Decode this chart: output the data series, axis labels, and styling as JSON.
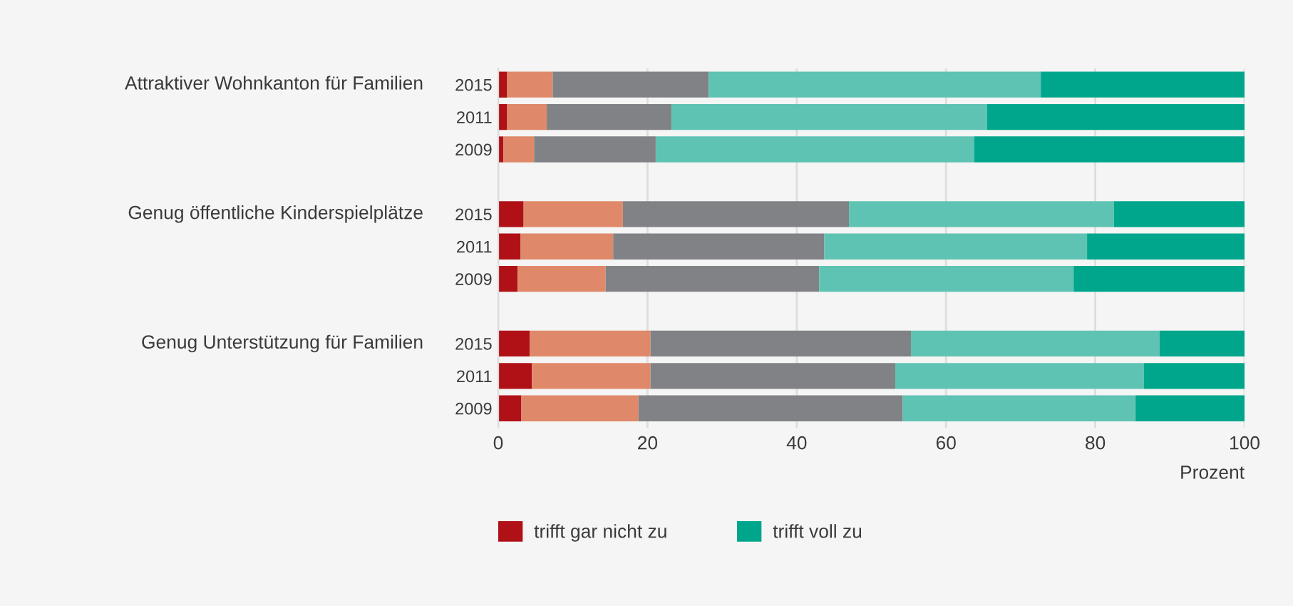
{
  "chart_data": {
    "type": "bar",
    "orientation": "horizontal",
    "stacked": true,
    "categories": [
      "2015",
      "2011",
      "2009",
      null,
      "2015",
      "2011",
      "2009",
      null,
      "2015",
      "2011",
      "2009"
    ],
    "series": [
      {
        "name": "trifft gar nicht zu",
        "color": "#b01117",
        "values": [
          1.2,
          1.2,
          0.7,
          null,
          3.4,
          3.0,
          2.6,
          null,
          4.2,
          4.5,
          3.1
        ]
      },
      {
        "color": "#e0896a",
        "values": [
          6.1,
          5.3,
          4.1,
          null,
          13.3,
          12.4,
          11.8,
          null,
          16.2,
          15.9,
          15.7
        ]
      },
      {
        "color": "#818285",
        "values": [
          20.9,
          16.7,
          16.3,
          null,
          30.3,
          28.3,
          28.6,
          null,
          34.9,
          32.8,
          35.4
        ]
      },
      {
        "color": "#5fc3b4",
        "values": [
          44.5,
          42.3,
          42.7,
          null,
          35.5,
          35.2,
          34.1,
          null,
          33.3,
          33.3,
          31.2
        ]
      },
      {
        "name": "trifft voll zu",
        "color": "#00a68b",
        "values": [
          27.3,
          34.5,
          36.2,
          null,
          17.5,
          21.1,
          22.9,
          null,
          11.4,
          13.5,
          14.6
        ]
      }
    ],
    "xlim": [
      0,
      100
    ],
    "xticks": [
      0,
      20,
      40,
      60,
      80,
      100
    ],
    "xlabel": "Prozent",
    "grid": "x",
    "legend": "bottom",
    "annotations": [
      "Attraktiver Wohnkanton für Familien",
      "Genug öffentliche Kinderspielplätze",
      "Genug Unterstützung für Familien"
    ]
  }
}
